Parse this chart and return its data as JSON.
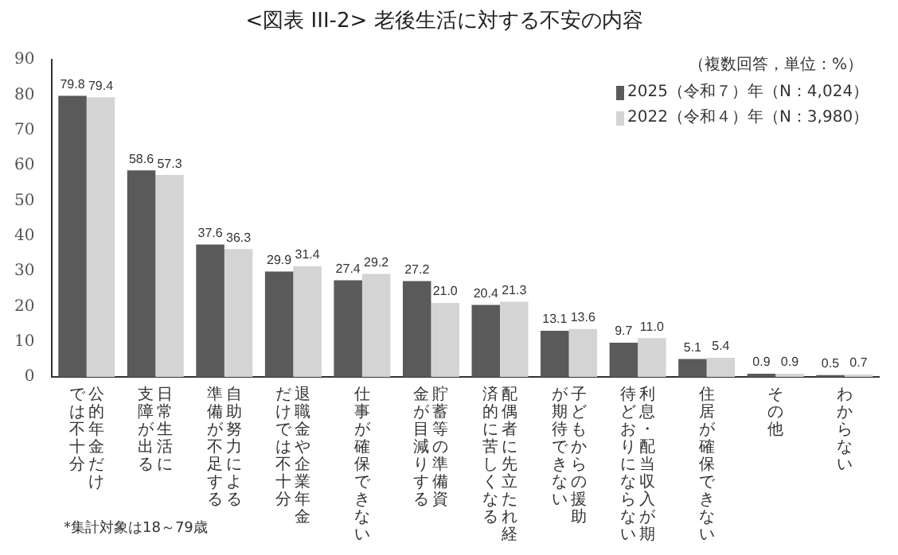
{
  "chart_data": {
    "type": "bar",
    "title": "<図表 III-2> 老後生活に対する不安の内容",
    "subtitle": "（複数回答，単位：%）",
    "categories": [
      "公的年金だけでは不十分",
      "日常生活に支障が出る",
      "自助努力による準備が不足する",
      "退職金や企業年金だけでは不十分",
      "仕事が確保できない",
      "貯蓄等の準備資金が目減りする",
      "配偶者に先立たれ経済的に苦しくなる",
      "子どもからの援助が期待できない",
      "利息・配当収入が期待どおりにならない",
      "住居が確保できない",
      "その他",
      "わからない"
    ],
    "series": [
      {
        "name": "2025（令和７）年（N：4,024）",
        "color": "#5a5a5a",
        "values": [
          79.8,
          58.6,
          37.6,
          29.9,
          27.4,
          27.2,
          20.4,
          13.1,
          9.7,
          5.1,
          0.9,
          0.5
        ],
        "value_labels": [
          "79.8",
          "58.6",
          "37.6",
          "29.9",
          "27.4",
          "27.2",
          "20.4",
          "13.1",
          "9.7",
          "5.1",
          "0.9",
          "0.5"
        ]
      },
      {
        "name": "2022（令和４）年（N：3,980）",
        "color": "#d4d4d4",
        "values": [
          79.4,
          57.3,
          36.3,
          31.4,
          29.2,
          21.0,
          21.3,
          13.6,
          11.0,
          5.4,
          0.9,
          0.7
        ],
        "value_labels": [
          "79.4",
          "57.3",
          "36.3",
          "31.4",
          "29.2",
          "21.0",
          "21.3",
          "13.6",
          "11.0",
          "5.4",
          "0.9",
          "0.7"
        ]
      }
    ],
    "ylim": [
      0,
      90
    ],
    "yticks": [
      0,
      10,
      20,
      30,
      40,
      50,
      60,
      70,
      80,
      90
    ],
    "grid": false,
    "legend": "top right",
    "annotations": [
      "*集計対象は18～79歳"
    ]
  }
}
